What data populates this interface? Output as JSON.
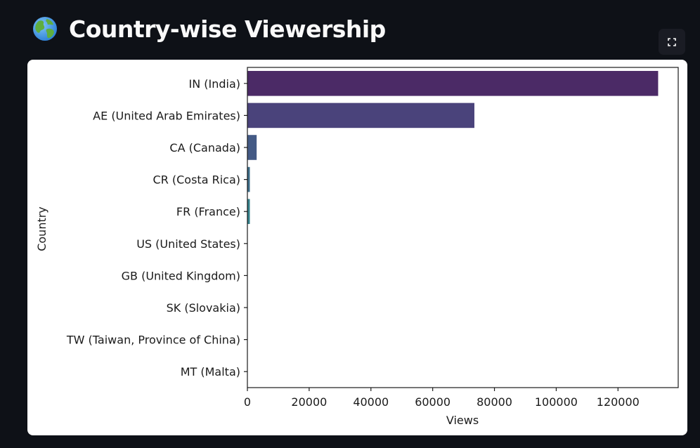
{
  "header": {
    "title": "Country-wise Viewership",
    "icon": "globe-icon"
  },
  "toolbar": {
    "fullscreen_icon": "fullscreen-icon"
  },
  "chart_data": {
    "type": "bar",
    "orientation": "horizontal",
    "title": "",
    "xlabel": "Views",
    "ylabel": "Country",
    "xlim": [
      0,
      139500
    ],
    "xticks": [
      0,
      20000,
      40000,
      60000,
      80000,
      100000,
      120000
    ],
    "xtick_labels": [
      "0",
      "20000",
      "40000",
      "60000",
      "80000",
      "100000",
      "120000"
    ],
    "categories": [
      "IN (India)",
      "AE (United Arab Emirates)",
      "CA (Canada)",
      "CR (Costa Rica)",
      "FR (France)",
      "US (United States)",
      "GB (United Kingdom)",
      "SK (Slovakia)",
      "TW (Taiwan, Province of China)",
      "MT (Malta)"
    ],
    "values": [
      133000,
      73500,
      3000,
      800,
      800,
      0,
      0,
      0,
      0,
      0
    ],
    "colors": [
      "#4b2a66",
      "#4a437b",
      "#445a85",
      "#3c6c87",
      "#33808a",
      "#2b9186",
      "#2aa57f",
      "#47b570",
      "#6fc45c",
      "#9fd146"
    ],
    "grid": false
  }
}
